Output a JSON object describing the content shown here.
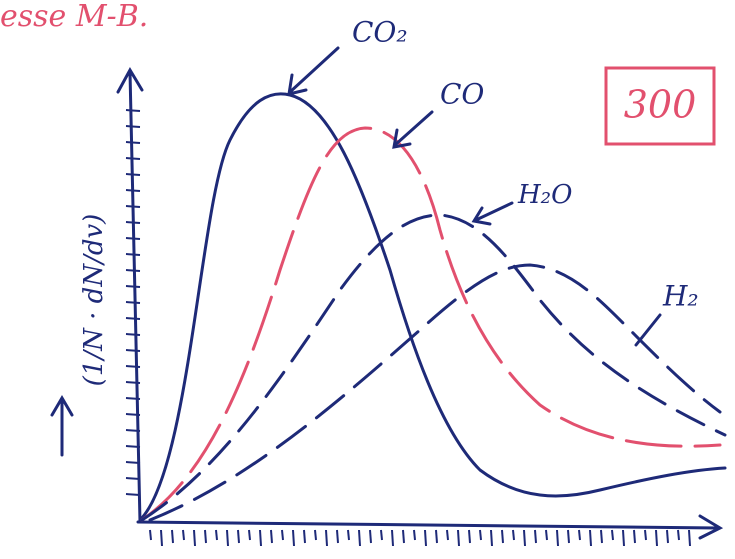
{
  "header": {
    "note": "esse M-B."
  },
  "box": {
    "label": "300"
  },
  "axes": {
    "y_label": "(1/N · dN/dv)"
  },
  "curves": [
    {
      "label": "CO₂"
    },
    {
      "label": "CO"
    },
    {
      "label": "H₂O"
    },
    {
      "label": "H₂"
    }
  ]
}
